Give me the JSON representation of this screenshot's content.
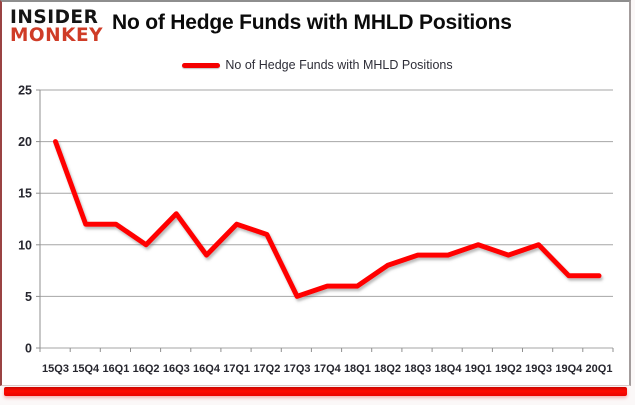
{
  "logo": {
    "line1": "INSIDER",
    "line2": "MONKEY"
  },
  "header": {
    "title": "No of Hedge Funds with MHLD Positions"
  },
  "legend": {
    "label": "No of Hedge Funds with MHLD Positions",
    "swatch_color": "#ff0000"
  },
  "colors": {
    "series_red": "#ff0000",
    "logo_black": "#141414",
    "logo_red": "#cf3c27",
    "gridline_gray": "#a6a6a6",
    "axis_label": "#26262e",
    "bottom_bar_red": "#ff0a00"
  },
  "chart_data": {
    "type": "line",
    "title": "No of Hedge Funds with MHLD Positions",
    "series_name": "No of Hedge Funds with MHLD Positions",
    "categories": [
      "15Q3",
      "15Q4",
      "16Q1",
      "16Q2",
      "16Q3",
      "16Q4",
      "17Q1",
      "17Q2",
      "17Q3",
      "17Q4",
      "18Q1",
      "18Q2",
      "18Q3",
      "18Q4",
      "19Q1",
      "19Q2",
      "19Q3",
      "19Q4",
      "20Q1"
    ],
    "values": [
      20,
      12,
      12,
      10,
      13,
      9,
      12,
      11,
      5,
      6,
      6,
      8,
      9,
      9,
      10,
      9,
      10,
      7,
      7
    ],
    "xlabel": "",
    "ylabel": "",
    "ylim": [
      0,
      25
    ],
    "ytick_interval": 5,
    "yticks": [
      0,
      5,
      10,
      15,
      20,
      25
    ],
    "grid": "horizontal",
    "legend_position": "top-center",
    "series_color": "#ff0000",
    "grid_color": "#a6a6a6",
    "axis_color": "#8f8f8f"
  }
}
